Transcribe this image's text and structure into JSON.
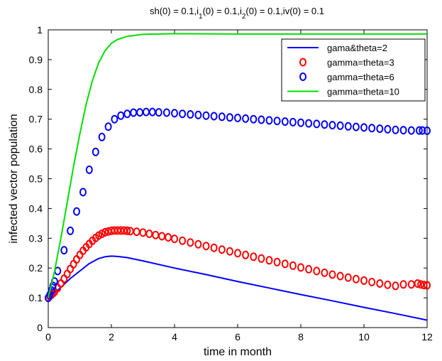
{
  "chart_data": {
    "type": "line",
    "title": {
      "parts": [
        {
          "t": "sh(0) = 0.1,i"
        },
        {
          "t": "1",
          "sub": true
        },
        {
          "t": "(0) = 0.1,i"
        },
        {
          "t": "2",
          "sub": true
        },
        {
          "t": "(0) = 0.1,iv(0) = 0.1"
        }
      ]
    },
    "xlabel": "time in month",
    "ylabel": "infected vector population",
    "xlim": [
      0,
      12
    ],
    "ylim": [
      0,
      1
    ],
    "xticks": [
      0,
      2,
      4,
      6,
      8,
      10,
      12
    ],
    "yticks": [
      0,
      0.1,
      0.2,
      0.3,
      0.4,
      0.5,
      0.6,
      0.7,
      0.8,
      0.9,
      1
    ],
    "grid": false,
    "legend_position": "top-right",
    "series": [
      {
        "name": "gama&theta=2",
        "style": "line",
        "color": "#0000ff",
        "x": [
          0,
          0.1,
          0.3,
          0.5,
          0.7,
          1.0,
          1.3,
          1.6,
          1.8,
          2.0,
          2.2,
          2.5,
          3.0,
          4.0,
          5.0,
          6.0,
          7.0,
          8.0,
          9.0,
          10.0,
          11.0,
          12.0
        ],
        "y": [
          0.1,
          0.11,
          0.125,
          0.145,
          0.165,
          0.19,
          0.215,
          0.232,
          0.238,
          0.24,
          0.239,
          0.235,
          0.224,
          0.2,
          0.178,
          0.155,
          0.133,
          0.111,
          0.09,
          0.068,
          0.047,
          0.025
        ]
      },
      {
        "name": "gamma=theta=3",
        "style": "markers",
        "marker": "circle",
        "color": "#ff0000",
        "x": [
          0,
          0.05,
          0.1,
          0.15,
          0.2,
          0.3,
          0.4,
          0.5,
          0.6,
          0.7,
          0.8,
          0.9,
          1.0,
          1.1,
          1.2,
          1.3,
          1.4,
          1.5,
          1.6,
          1.7,
          1.8,
          1.9,
          2.0,
          2.1,
          2.2,
          2.3,
          2.4,
          2.5,
          2.6,
          2.8,
          3.0,
          3.2,
          3.4,
          3.6,
          3.8,
          4.0,
          4.25,
          4.5,
          4.75,
          5.0,
          5.25,
          5.5,
          5.75,
          6.0,
          6.25,
          6.5,
          6.75,
          7.0,
          7.25,
          7.5,
          7.75,
          8.0,
          8.25,
          8.5,
          8.75,
          9.0,
          9.25,
          9.5,
          9.75,
          10.0,
          10.25,
          10.5,
          10.75,
          11.0,
          11.25,
          11.5,
          11.7,
          11.8,
          11.9,
          12.0
        ],
        "y": [
          0.1,
          0.105,
          0.11,
          0.115,
          0.12,
          0.133,
          0.148,
          0.164,
          0.18,
          0.197,
          0.213,
          0.229,
          0.244,
          0.258,
          0.27,
          0.281,
          0.292,
          0.301,
          0.309,
          0.315,
          0.32,
          0.323,
          0.325,
          0.326,
          0.326,
          0.326,
          0.326,
          0.325,
          0.324,
          0.322,
          0.319,
          0.315,
          0.311,
          0.307,
          0.303,
          0.298,
          0.292,
          0.286,
          0.28,
          0.274,
          0.268,
          0.262,
          0.256,
          0.25,
          0.244,
          0.238,
          0.232,
          0.226,
          0.22,
          0.214,
          0.208,
          0.202,
          0.196,
          0.19,
          0.184,
          0.178,
          0.173,
          0.168,
          0.163,
          0.158,
          0.153,
          0.148,
          0.144,
          0.14,
          0.145,
          0.145,
          0.148,
          0.145,
          0.143,
          0.142
        ]
      },
      {
        "name": "gamma=theta=6",
        "style": "markers",
        "marker": "circle",
        "color": "#0000ff",
        "x": [
          0,
          0.05,
          0.1,
          0.15,
          0.2,
          0.3,
          0.5,
          0.7,
          0.9,
          1.1,
          1.3,
          1.5,
          1.7,
          1.9,
          2.1,
          2.3,
          2.5,
          2.7,
          2.9,
          3.1,
          3.3,
          3.5,
          3.75,
          4.0,
          4.25,
          4.5,
          4.75,
          5.0,
          5.25,
          5.5,
          5.75,
          6.0,
          6.25,
          6.5,
          6.75,
          7.0,
          7.25,
          7.5,
          7.75,
          8.0,
          8.25,
          8.5,
          8.75,
          9.0,
          9.25,
          9.5,
          9.75,
          10.0,
          10.25,
          10.5,
          10.75,
          11.0,
          11.25,
          11.5,
          11.75,
          11.85,
          12.0
        ],
        "y": [
          0.1,
          0.11,
          0.125,
          0.14,
          0.155,
          0.19,
          0.26,
          0.325,
          0.39,
          0.455,
          0.53,
          0.59,
          0.64,
          0.675,
          0.7,
          0.712,
          0.718,
          0.722,
          0.723,
          0.724,
          0.724,
          0.723,
          0.722,
          0.72,
          0.718,
          0.716,
          0.714,
          0.712,
          0.71,
          0.708,
          0.706,
          0.704,
          0.702,
          0.7,
          0.698,
          0.696,
          0.694,
          0.692,
          0.69,
          0.688,
          0.686,
          0.684,
          0.682,
          0.68,
          0.678,
          0.676,
          0.674,
          0.672,
          0.67,
          0.668,
          0.666,
          0.664,
          0.663,
          0.662,
          0.662,
          0.662,
          0.661
        ]
      },
      {
        "name": "gamma=theta=10",
        "style": "line",
        "color": "#00e000",
        "x": [
          0,
          0.2,
          0.4,
          0.6,
          0.8,
          1.0,
          1.2,
          1.4,
          1.6,
          1.8,
          2.0,
          2.2,
          2.5,
          3.0,
          3.5,
          4.0,
          6.0,
          8.0,
          10.0,
          12.0
        ],
        "y": [
          0.1,
          0.19,
          0.3,
          0.42,
          0.54,
          0.65,
          0.75,
          0.83,
          0.89,
          0.93,
          0.955,
          0.968,
          0.978,
          0.985,
          0.986,
          0.987,
          0.986,
          0.986,
          0.986,
          0.986
        ]
      }
    ]
  }
}
